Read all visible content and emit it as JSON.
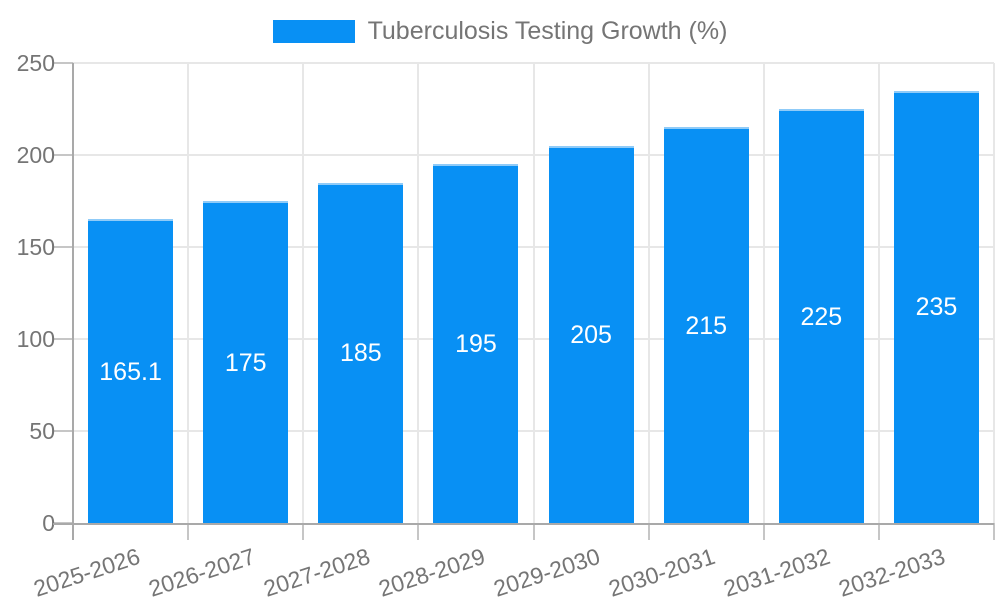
{
  "legend": {
    "label": "Tuberculosis Testing Growth (%)"
  },
  "chart_data": {
    "type": "bar",
    "title": "Tuberculosis Testing Growth (%)",
    "categories": [
      "2025-2026",
      "2026-2027",
      "2027-2028",
      "2028-2029",
      "2029-2030",
      "2030-2031",
      "2031-2032",
      "2032-2033"
    ],
    "values": [
      165.1,
      175,
      185,
      195,
      205,
      215,
      225,
      235
    ],
    "bar_labels": [
      "165.1",
      "175",
      "185",
      "195",
      "205",
      "215",
      "225",
      "235"
    ],
    "xlabel": "",
    "ylabel": "",
    "ylim": [
      0,
      250
    ],
    "yticks": [
      0,
      50,
      100,
      150,
      200,
      250
    ],
    "grid": true,
    "legend_position": "top",
    "colors": {
      "bar": "#0890F4",
      "bar_top_edge": "#8FCBF8",
      "bar_label": "#FFFFFF",
      "text": "#757575",
      "gridline": "#E7E7E7",
      "tick": "#C6C6C6",
      "axis": "#A9A9A9",
      "background": "#FFFFFF"
    }
  }
}
